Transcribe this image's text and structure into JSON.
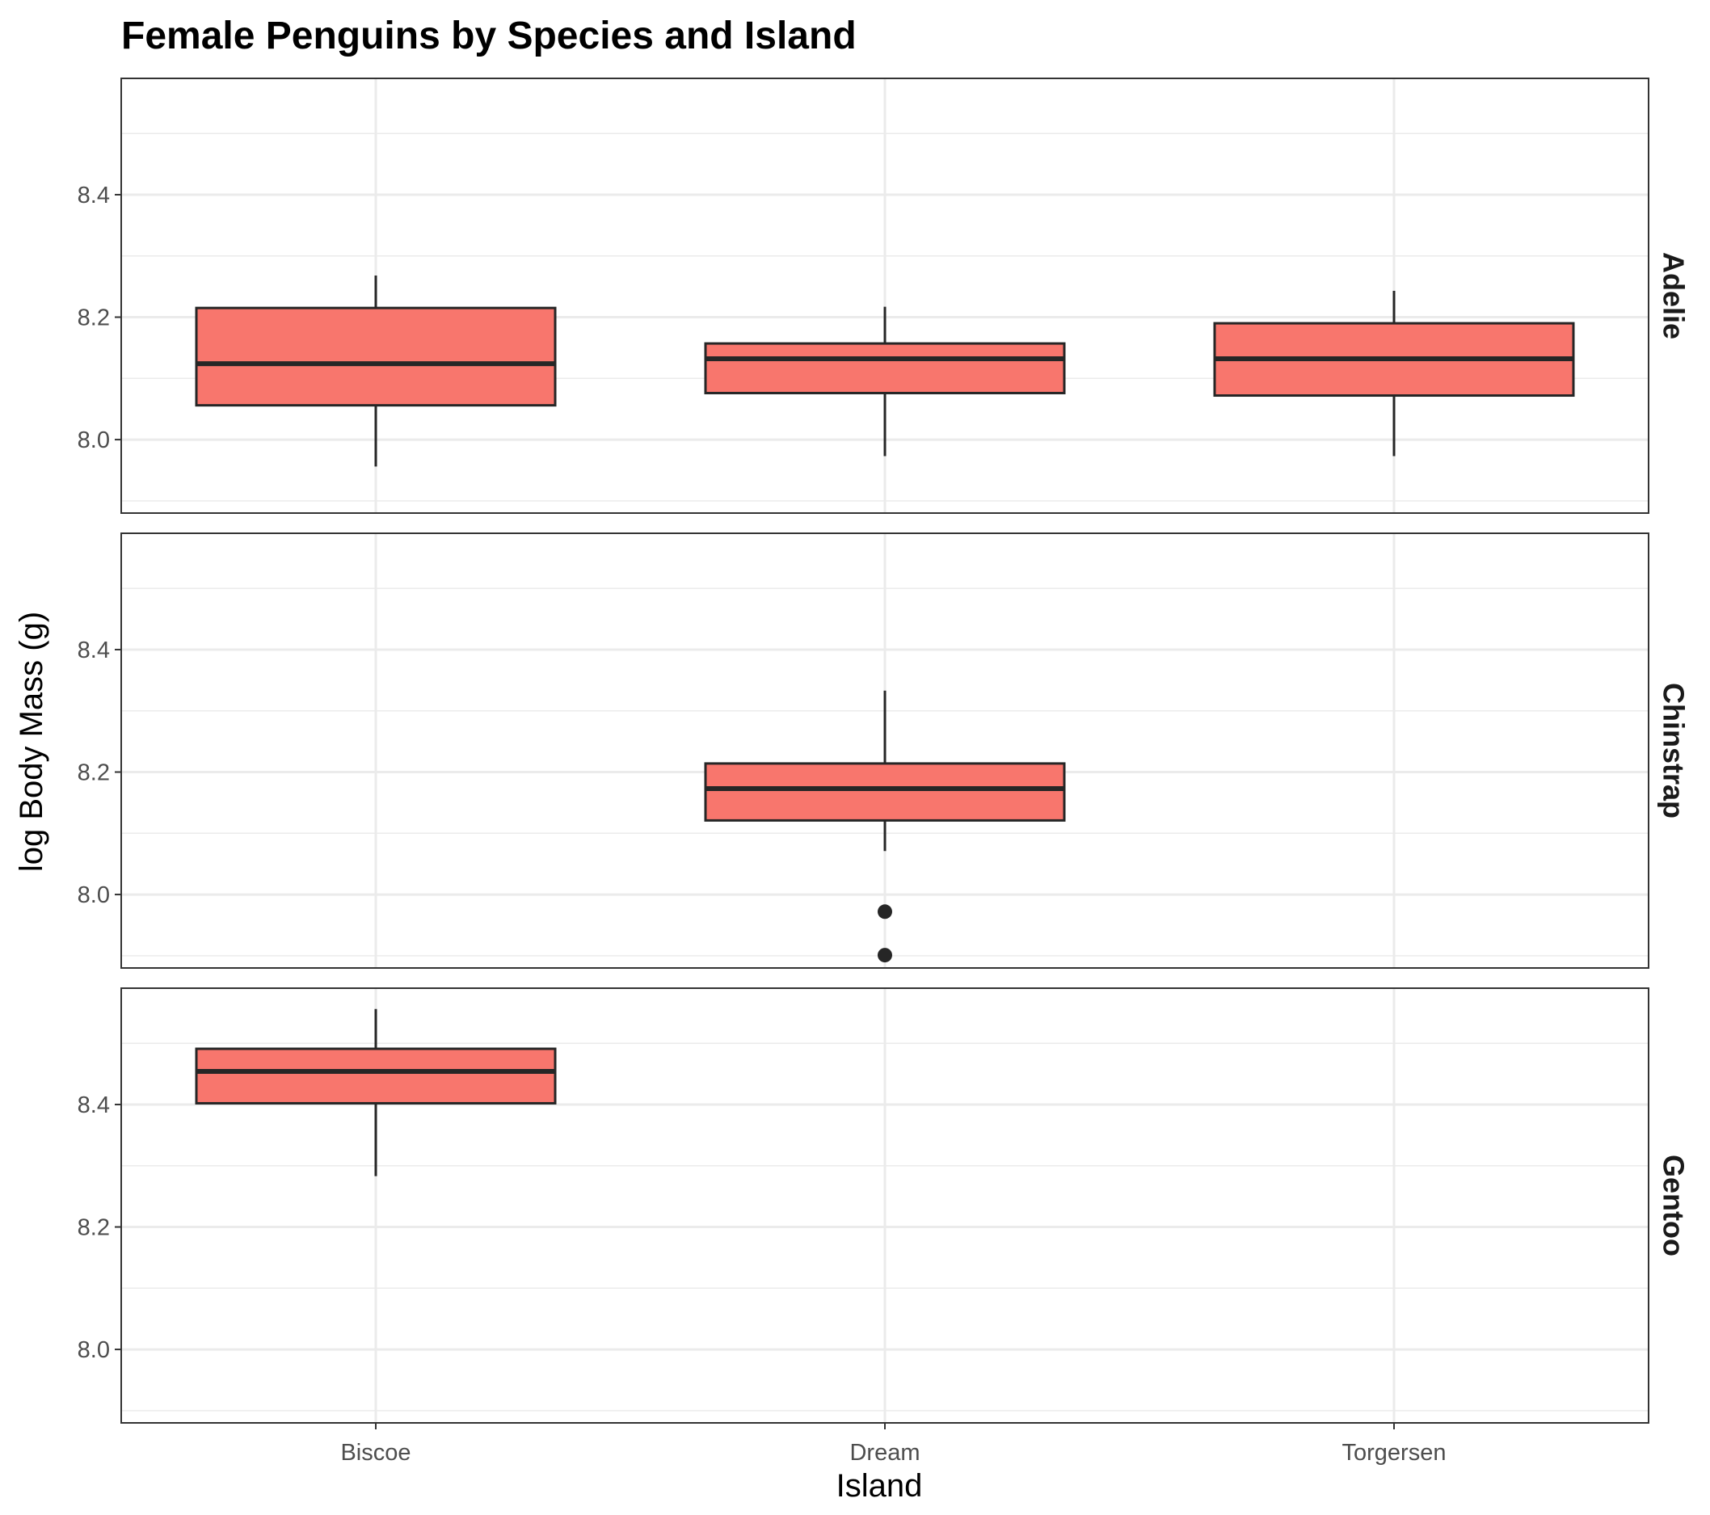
{
  "chart_data": {
    "type": "boxplot",
    "title": "Female Penguins by Species and Island",
    "xlabel": "Island",
    "ylabel": "log Body Mass (g)",
    "categories": [
      "Biscoe",
      "Dream",
      "Torgersen"
    ],
    "ylim": [
      7.88,
      8.59
    ],
    "yticks": [
      8.0,
      8.2,
      8.4
    ],
    "ytick_labels": [
      "8.0",
      "8.2",
      "8.4"
    ],
    "grid": true,
    "facet": "rows",
    "colors": {
      "fill": "#F8766D",
      "outline": "#262626",
      "grid": "#ebebeb",
      "panel_border": "#333333"
    },
    "panels": [
      {
        "label": "Adelie",
        "boxes": [
          {
            "category": "Biscoe",
            "whisker_low": 7.956,
            "q1": 8.056,
            "median": 8.124,
            "q3": 8.215,
            "whisker_high": 8.268,
            "outliers": []
          },
          {
            "category": "Dream",
            "whisker_low": 7.973,
            "q1": 8.076,
            "median": 8.132,
            "q3": 8.157,
            "whisker_high": 8.217,
            "outliers": []
          },
          {
            "category": "Torgersen",
            "whisker_low": 7.973,
            "q1": 8.072,
            "median": 8.132,
            "q3": 8.19,
            "whisker_high": 8.243,
            "outliers": []
          }
        ]
      },
      {
        "label": "Chinstrap",
        "boxes": [
          {
            "category": "Dream",
            "whisker_low": 8.071,
            "q1": 8.121,
            "median": 8.173,
            "q3": 8.214,
            "whisker_high": 8.333,
            "outliers": [
              7.972,
              7.901
            ]
          }
        ]
      },
      {
        "label": "Gentoo",
        "boxes": [
          {
            "category": "Biscoe",
            "whisker_low": 8.283,
            "q1": 8.402,
            "median": 8.454,
            "q3": 8.491,
            "whisker_high": 8.556,
            "outliers": []
          }
        ]
      }
    ]
  }
}
